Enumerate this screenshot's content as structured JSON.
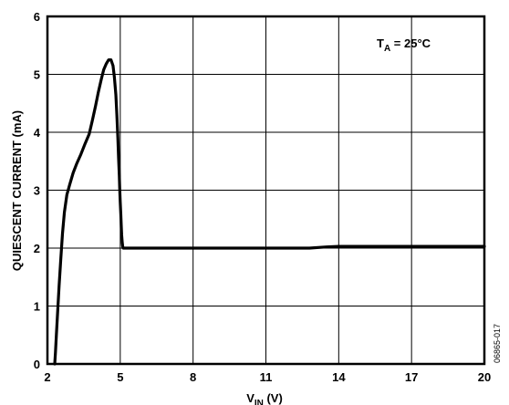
{
  "chart_data": {
    "type": "line",
    "xlabel": {
      "main": "V",
      "sub": "IN",
      "unit": " (V)"
    },
    "ylabel": "QUIESCENT CURRENT (mA)",
    "xlim": [
      2,
      20
    ],
    "ylim": [
      0,
      6
    ],
    "xticks": [
      "2",
      "5",
      "8",
      "11",
      "14",
      "17",
      "20"
    ],
    "xtick_values": [
      2,
      5,
      8,
      11,
      14,
      17,
      20
    ],
    "yticks": [
      "0",
      "1",
      "2",
      "3",
      "4",
      "5",
      "6"
    ],
    "ytick_values": [
      0,
      1,
      2,
      3,
      4,
      5,
      6
    ],
    "grid": true,
    "annotation": {
      "main": "T",
      "sub": "A",
      "rest": " = 25°C"
    },
    "figure_id": "06865-017",
    "line_color": "#000000",
    "series": [
      {
        "x": [
          2.3,
          2.33,
          2.37,
          2.42,
          2.48,
          2.55,
          2.62,
          2.7,
          2.8,
          2.92,
          3.06,
          3.2,
          3.38,
          3.55,
          3.72,
          3.85,
          3.98,
          4.1,
          4.22,
          4.32,
          4.42,
          4.52,
          4.62,
          4.7,
          4.76,
          4.82,
          4.86,
          4.9,
          4.93,
          4.96,
          4.98,
          5.0,
          5.02,
          5.04,
          5.06,
          5.08,
          5.1,
          5.12,
          5.14,
          5.17,
          5.25,
          6,
          8,
          10,
          12,
          12.8,
          13.5,
          14,
          16,
          18,
          20
        ],
        "y": [
          0.0,
          0.2,
          0.5,
          0.9,
          1.35,
          1.8,
          2.25,
          2.62,
          2.92,
          3.1,
          3.3,
          3.45,
          3.62,
          3.8,
          3.97,
          4.2,
          4.45,
          4.7,
          4.92,
          5.08,
          5.18,
          5.25,
          5.25,
          5.15,
          4.95,
          4.65,
          4.3,
          3.9,
          3.55,
          3.25,
          3.0,
          2.8,
          2.6,
          2.4,
          2.22,
          2.1,
          2.03,
          2.0,
          2.0,
          2.0,
          2.0,
          2.0,
          2.0,
          2.0,
          2.0,
          2.0,
          2.02,
          2.03,
          2.03,
          2.03,
          2.03
        ]
      }
    ]
  }
}
